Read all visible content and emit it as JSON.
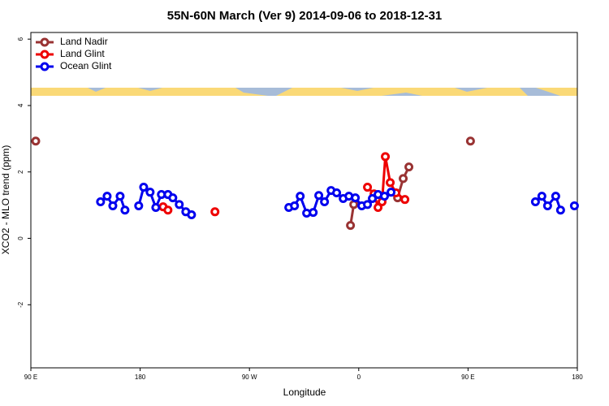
{
  "chart_data": {
    "type": "line",
    "title": "55N-60N March (Ver 9)   2014-09-06 to 2018-12-31",
    "x_label": "Longitude",
    "y_label": "XCO2 - MLO trend (ppm)",
    "xlim": [
      90,
      540
    ],
    "xticks": [
      {
        "value": 90,
        "label": "90 E"
      },
      180,
      {
        "value": 270,
        "label": "90 W"
      },
      {
        "value": 360,
        "label": "0"
      },
      {
        "value": 450,
        "label": "90 E"
      },
      {
        "value": 540,
        "label": "180"
      }
    ],
    "ylim": [
      -3.9,
      6.2
    ],
    "yticks": [
      -2,
      0,
      2,
      4,
      6
    ],
    "legend": "top-left",
    "series": [
      {
        "name": "Land Nadir",
        "color": "#993333",
        "x": [
          94,
          null,
          353.2,
          355.9,
          null,
          392,
          396.6,
          401.3,
          null,
          452
        ],
        "values": [
          2.93,
          null,
          0.39,
          1.02,
          null,
          1.22,
          1.8,
          2.15,
          null,
          2.93
        ]
      },
      {
        "name": "Land Glint",
        "color": "#ee0000",
        "x": [
          198.9,
          202.9,
          null,
          241.6,
          null,
          367.2,
          372.6,
          375.9,
          379.2,
          381.9,
          385.9,
          390.6,
          398
        ],
        "values": [
          0.95,
          0.85,
          null,
          0.8,
          null,
          1.54,
          1.34,
          0.93,
          1.1,
          2.46,
          1.68,
          1.37,
          1.17
        ]
      },
      {
        "name": "Ocean Glint",
        "color": "#0000ee",
        "x": [
          147.4,
          152.8,
          157.5,
          163.5,
          167.5,
          null,
          178.8,
          182.9,
          188.2,
          192.9,
          197.5,
          202.9,
          206.9,
          212.2,
          217.6,
          222.3,
          null,
          302.4,
          307.1,
          311.8,
          317.1,
          322.5,
          327.1,
          331.8,
          337.2,
          341.8,
          347.2,
          351.9,
          357.2,
          362.5,
          367.2,
          371.2,
          375.9,
          381.2,
          386.6,
          null,
          505.5,
          510.8,
          515.5,
          522.2,
          526.2,
          null,
          537.6
        ],
        "values": [
          1.1,
          1.27,
          0.98,
          1.27,
          0.85,
          null,
          0.98,
          1.54,
          1.39,
          0.93,
          1.32,
          1.32,
          1.22,
          1.02,
          0.8,
          0.71,
          null,
          0.93,
          0.98,
          1.27,
          0.76,
          0.78,
          1.29,
          1.1,
          1.44,
          1.37,
          1.2,
          1.27,
          1.22,
          0.98,
          1.02,
          1.2,
          1.32,
          1.27,
          1.39,
          null,
          1.1,
          1.27,
          0.98,
          1.27,
          0.85,
          null,
          0.98
        ]
      }
    ]
  }
}
